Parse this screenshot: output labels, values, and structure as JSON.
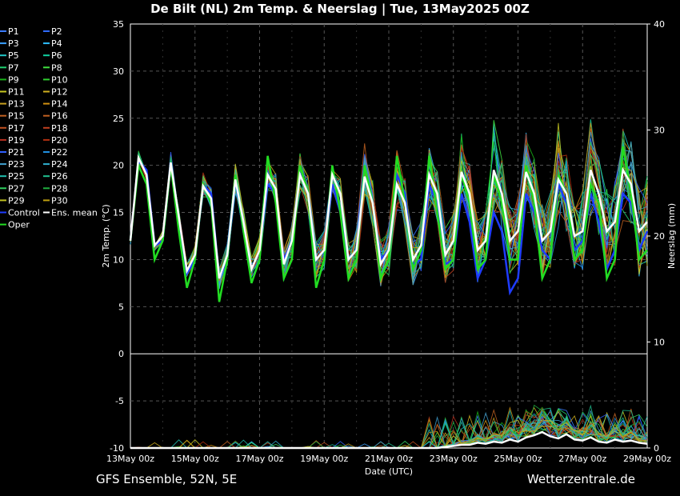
{
  "header": {
    "title": "De Bilt  (NL)  2m Temp. & Neerslag | Tue, 13May2025 00Z"
  },
  "footer": {
    "left": "GFS Ensemble, 52N, 5E",
    "right": "Wetterzentrale.de"
  },
  "chart_data": {
    "type": "line",
    "title": "De Bilt  (NL)  2m Temp. & Neerslag | Tue, 13May2025 00Z",
    "xlabel": "Date (UTC)",
    "ylabel": "2m Temp. (°C)",
    "y2label": "Neerslag (mm)",
    "xlim_hours": [
      0,
      384
    ],
    "ylim": [
      -10,
      35
    ],
    "y2lim": [
      0,
      40
    ],
    "yticks": [
      "35",
      "30",
      "25",
      "20",
      "15",
      "10",
      "5",
      "0",
      "-5",
      "-10"
    ],
    "y2ticks": [
      "40",
      "30",
      "20",
      "10",
      "0"
    ],
    "xticks": [
      "13May 00z",
      "15May 00z",
      "17May 00z",
      "19May 00z",
      "21May 00z",
      "23May 00z",
      "25May 00z",
      "27May 00z",
      "29May 00z"
    ],
    "grid": true,
    "legend_position": "left-outside",
    "colors": {
      "mean": "#ffffff",
      "control": "#1e3cff",
      "oper": "#22dd22",
      "members": [
        "#3b7bff",
        "#2f6bff",
        "#3aa0ff",
        "#2ec0ff",
        "#20c8c8",
        "#10d0a0",
        "#20d070",
        "#40e040",
        "#18b018",
        "#30d030",
        "#c8c820",
        "#d0b020",
        "#c8a020",
        "#d09010",
        "#c06020",
        "#c06020",
        "#c05020",
        "#c04020",
        "#b83020",
        "#b03010",
        "#3060ff",
        "#2090e0",
        "#40a0d0",
        "#30b0d0",
        "#20c0b0",
        "#20c090",
        "#30d060",
        "#20b040",
        "#c0c020",
        "#c0a010"
      ]
    },
    "series": [
      {
        "name": "P1"
      },
      {
        "name": "P2"
      },
      {
        "name": "P3"
      },
      {
        "name": "P4"
      },
      {
        "name": "P5"
      },
      {
        "name": "P6"
      },
      {
        "name": "P7"
      },
      {
        "name": "P8"
      },
      {
        "name": "P9"
      },
      {
        "name": "P10"
      },
      {
        "name": "P11"
      },
      {
        "name": "P12"
      },
      {
        "name": "P13"
      },
      {
        "name": "P14"
      },
      {
        "name": "P15"
      },
      {
        "name": "P16"
      },
      {
        "name": "P17"
      },
      {
        "name": "P18"
      },
      {
        "name": "P19"
      },
      {
        "name": "P20"
      },
      {
        "name": "P21"
      },
      {
        "name": "P22"
      },
      {
        "name": "P23"
      },
      {
        "name": "P24"
      },
      {
        "name": "P25"
      },
      {
        "name": "P26"
      },
      {
        "name": "P27"
      },
      {
        "name": "P28"
      },
      {
        "name": "P29"
      },
      {
        "name": "P30"
      },
      {
        "name": "Control",
        "x": [
          0,
          6,
          12,
          18,
          24,
          30,
          36,
          42,
          48,
          54,
          60,
          66,
          72,
          78,
          84,
          90,
          96,
          102,
          108,
          114,
          120,
          126,
          132,
          138,
          144,
          150,
          156,
          162,
          168,
          174,
          180,
          186,
          192,
          198,
          204,
          210,
          216,
          222,
          228,
          234,
          240,
          246,
          252,
          258,
          264,
          270,
          276,
          282,
          288,
          294,
          300,
          306,
          312,
          318,
          324,
          330,
          336,
          342,
          348,
          354,
          360,
          366,
          372,
          378,
          384
        ],
        "temp": [
          12,
          20.5,
          19.5,
          11.5,
          12,
          20,
          14,
          8.5,
          10,
          18,
          17,
          8,
          10,
          18.5,
          13,
          9,
          11,
          18,
          17,
          10,
          12,
          19,
          17,
          10,
          11,
          18,
          15,
          10,
          11,
          20,
          16,
          10,
          11,
          19,
          17,
          9.5,
          10,
          18,
          16,
          9.5,
          10,
          17,
          14,
          8,
          10,
          15,
          13,
          6.5,
          8,
          17,
          15,
          11,
          10,
          18,
          16,
          11,
          12,
          17,
          14,
          9,
          11,
          17,
          16,
          11,
          13
        ]
      },
      {
        "name": "Ens. mean",
        "x": [
          0,
          6,
          12,
          18,
          24,
          30,
          36,
          42,
          48,
          54,
          60,
          66,
          72,
          78,
          84,
          90,
          96,
          102,
          108,
          114,
          120,
          126,
          132,
          138,
          144,
          150,
          156,
          162,
          168,
          174,
          180,
          186,
          192,
          198,
          204,
          210,
          216,
          222,
          228,
          234,
          240,
          246,
          252,
          258,
          264,
          270,
          276,
          282,
          288,
          294,
          300,
          306,
          312,
          318,
          324,
          330,
          336,
          342,
          348,
          354,
          360,
          366,
          372,
          378,
          384
        ],
        "temp": [
          12,
          20.8,
          19,
          11.5,
          12.5,
          20.3,
          14.5,
          8.8,
          10.5,
          17.8,
          16.5,
          8,
          10.5,
          18.5,
          14,
          9,
          11,
          19,
          17.5,
          9.5,
          12,
          19,
          17,
          10,
          11,
          19,
          17,
          10,
          11,
          18.8,
          16,
          9.5,
          11,
          18,
          16,
          10,
          11.5,
          19,
          17,
          10.5,
          12,
          19.3,
          17,
          11,
          12,
          19.5,
          17,
          12,
          13,
          19.3,
          17,
          12,
          13,
          18.5,
          17,
          12.5,
          13,
          19.5,
          17,
          13,
          14,
          19.5,
          18,
          13,
          14
        ],
        "precip": [
          0,
          0,
          0,
          0,
          0,
          0,
          0,
          0,
          0,
          0,
          0,
          0,
          0,
          0,
          0,
          0,
          0,
          0,
          0,
          0,
          0,
          0,
          0,
          0,
          0,
          0,
          0,
          0,
          0,
          0,
          0,
          0,
          0,
          0,
          0,
          0,
          0,
          0,
          0,
          0.1,
          0.2,
          0.3,
          0.3,
          0.5,
          0.4,
          0.6,
          0.5,
          0.8,
          0.6,
          1.0,
          1.2,
          1.5,
          1.1,
          0.9,
          1.3,
          0.8,
          0.7,
          1.0,
          0.6,
          0.5,
          0.8,
          0.6,
          0.7,
          0.5,
          0.4
        ]
      },
      {
        "name": "Oper",
        "x": [
          0,
          6,
          12,
          18,
          24,
          30,
          36,
          42,
          48,
          54,
          60,
          66,
          72,
          78,
          84,
          90,
          96,
          102,
          108,
          114,
          120,
          126,
          132,
          138,
          144,
          150,
          156,
          162,
          168,
          174,
          180,
          186,
          192,
          198,
          204,
          210,
          216,
          222,
          228,
          234,
          240,
          246,
          252,
          258,
          264,
          270,
          276,
          282,
          288,
          294,
          300,
          306,
          312,
          318,
          324,
          330,
          336,
          342,
          348,
          354,
          360,
          366,
          372,
          378,
          384
        ],
        "temp": [
          12,
          20,
          18,
          10,
          12,
          20,
          13,
          7,
          10,
          18,
          16,
          5.5,
          10,
          19,
          13,
          7.5,
          10,
          21,
          16,
          8,
          10,
          20,
          17,
          7,
          10,
          20,
          15,
          8,
          10,
          20,
          16,
          8,
          10,
          21,
          16,
          9,
          11,
          21,
          15,
          9,
          10,
          19,
          16,
          9,
          10,
          19,
          16,
          10,
          10,
          20,
          16,
          8,
          10,
          19,
          17,
          10,
          11,
          18,
          16,
          8,
          10,
          22,
          17,
          10,
          11
        ]
      }
    ]
  }
}
